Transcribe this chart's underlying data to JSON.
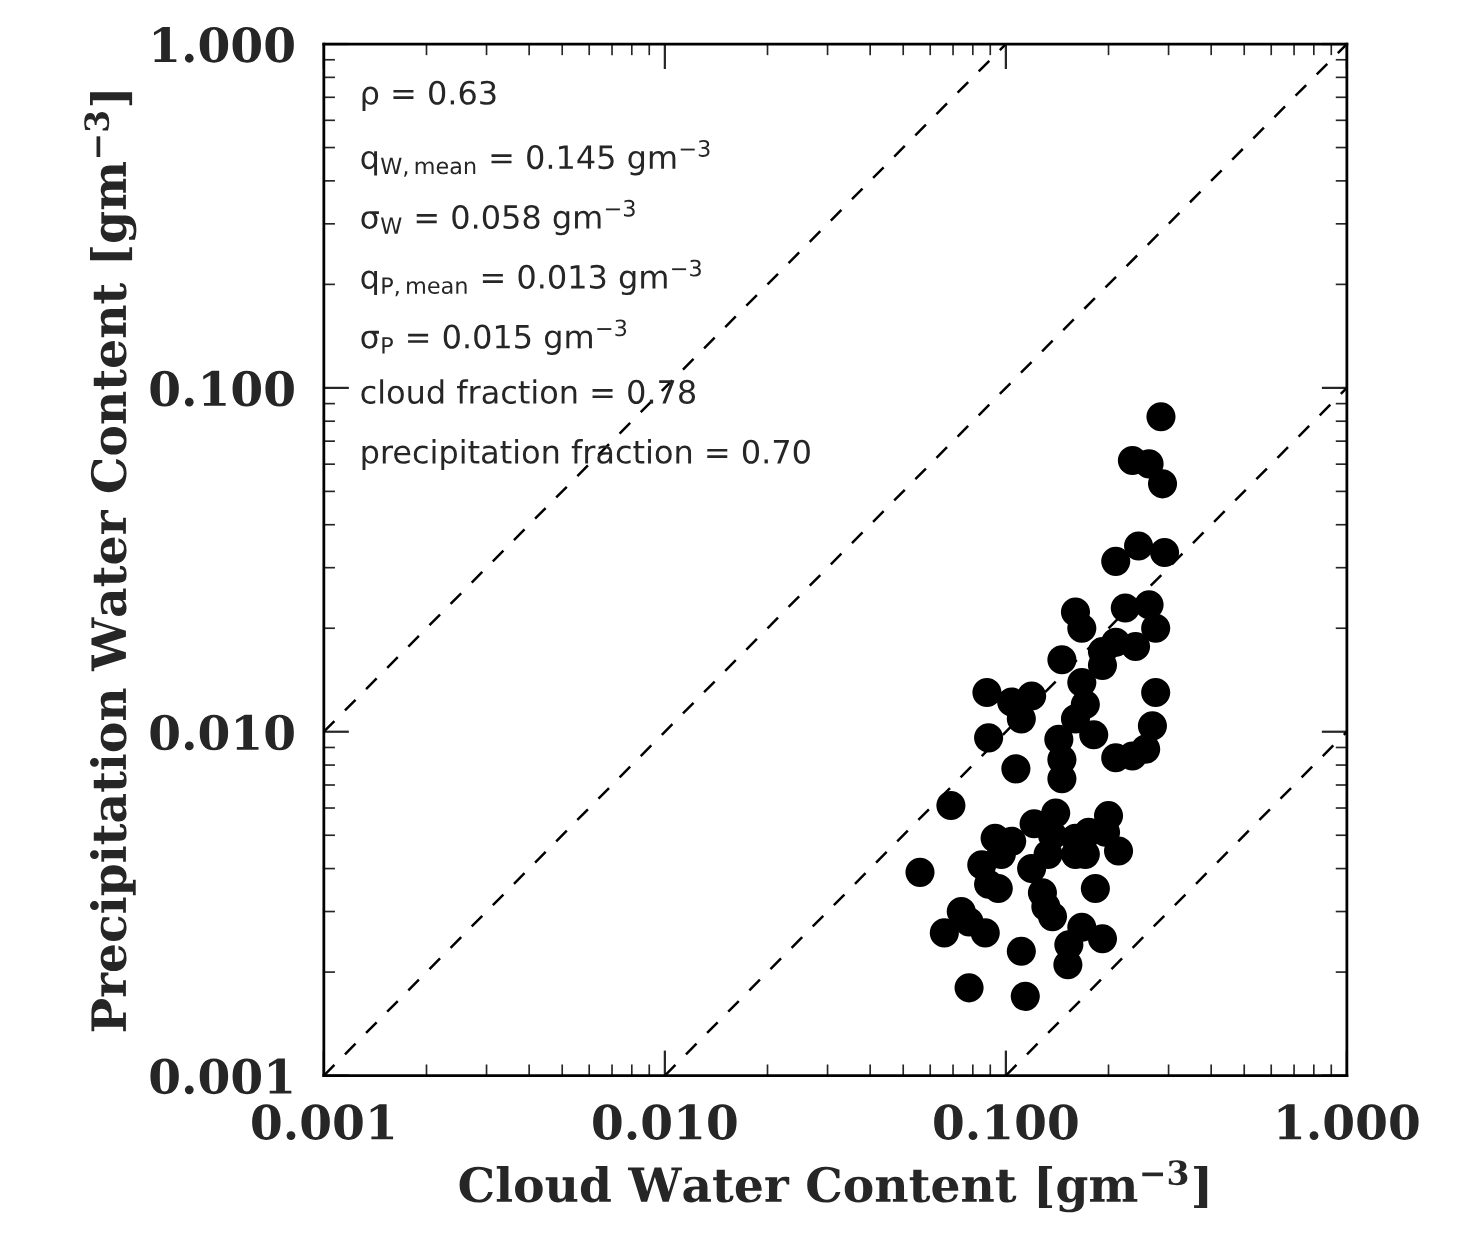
{
  "chart_data": {
    "type": "scatter",
    "xlabel": "Cloud Water Content [gm$^{−3}$]",
    "ylabel": "Precipitation Water Content [gm$^{−3}$]",
    "log": "xy",
    "xlim": [
      0.001,
      1
    ],
    "ylim": [
      0.001,
      1
    ],
    "xticks": [
      0.001,
      {
        "value": 0.01,
        "label": "0.010"
      },
      {
        "value": 0.1,
        "label": "0.100"
      },
      {
        "value": 1,
        "label": "1.000"
      }
    ],
    "yticks": [
      0.001,
      {
        "value": 0.01,
        "label": "0.010"
      },
      {
        "value": 0.1,
        "label": "0.100"
      },
      {
        "value": 1,
        "label": "1.000"
      }
    ],
    "grid": false,
    "legend": false,
    "annotations": [
      "ρ = 0.63",
      "q$_{W,mean}$ = 0.145 gm$^{−3}$",
      "σ$_{W}$ = 0.058 gm$^{−3}$",
      "q$_{P,mean}$ = 0.013 gm$^{−3}$",
      "σ$_{P}$ = 0.015 gm$^{−3}$",
      "cloud fraction = 0.78",
      "precipitation fraction = 0.70"
    ],
    "series": [
      {
        "type": "line",
        "color": "#000000",
        "line_style": "dashed",
        "marker": "none",
        "x": [
          0.001,
          0.1
        ],
        "values": [
          0.01,
          1
        ]
      },
      {
        "type": "line",
        "color": "#000000",
        "line_style": "dashed",
        "marker": "none",
        "x": [
          0.001,
          1
        ],
        "values": [
          0.001,
          1
        ]
      },
      {
        "type": "line",
        "color": "#000000",
        "line_style": "dashed",
        "marker": "none",
        "x": [
          0.01,
          1
        ],
        "values": [
          0.001,
          0.1
        ]
      },
      {
        "type": "line",
        "color": "#000000",
        "line_style": "dashed",
        "marker": "none",
        "x": [
          0.1,
          1
        ],
        "values": [
          0.001,
          0.01
        ]
      },
      {
        "color": "#000000",
        "marker": "circle",
        "x": [
          0.285,
          0.235,
          0.263,
          0.288,
          0.245,
          0.21,
          0.292,
          0.16,
          0.167,
          0.224,
          0.263,
          0.275,
          0.21,
          0.24,
          0.192,
          0.192,
          0.146,
          0.167,
          0.275,
          0.088,
          0.119,
          0.104,
          0.111,
          0.171,
          0.16,
          0.269,
          0.089,
          0.181,
          0.143,
          0.146,
          0.257,
          0.235,
          0.21,
          0.107,
          0.146,
          0.069,
          0.14,
          0.121,
          0.2,
          0.196,
          0.093,
          0.104,
          0.137,
          0.16,
          0.175,
          0.133,
          0.16,
          0.171,
          0.214,
          0.097,
          0.085,
          0.056,
          0.119,
          0.089,
          0.095,
          0.128,
          0.131,
          0.183,
          0.137,
          0.074,
          0.078,
          0.087,
          0.066,
          0.167,
          0.192,
          0.111,
          0.153,
          0.152,
          0.078,
          0.114
        ],
        "values": [
          0.0824,
          0.0615,
          0.0601,
          0.0526,
          0.0347,
          0.0313,
          0.0332,
          0.0223,
          0.02,
          0.0229,
          0.0234,
          0.02,
          0.0182,
          0.0177,
          0.0171,
          0.0156,
          0.0162,
          0.0139,
          0.013,
          0.013,
          0.0127,
          0.0122,
          0.0109,
          0.012,
          0.0109,
          0.0104,
          0.0096,
          0.0098,
          0.0095,
          0.0083,
          0.0089,
          0.0085,
          0.0084,
          0.0078,
          0.0073,
          0.0061,
          0.0058,
          0.0054,
          0.0057,
          0.0051,
          0.0049,
          0.0048,
          0.005,
          0.0049,
          0.0051,
          0.0044,
          0.0044,
          0.0044,
          0.0045,
          0.0044,
          0.0041,
          0.0039,
          0.004,
          0.0036,
          0.0035,
          0.0034,
          0.0031,
          0.0035,
          0.0029,
          0.003,
          0.0028,
          0.0026,
          0.0026,
          0.0027,
          0.0025,
          0.0023,
          0.0024,
          0.0021,
          0.0018,
          0.0017
        ]
      }
    ]
  }
}
